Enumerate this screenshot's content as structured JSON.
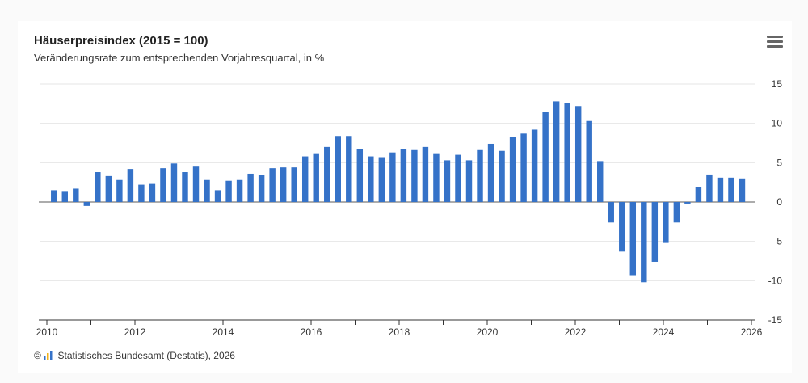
{
  "header": {
    "title": "Häuserpreisindex (2015 = 100)",
    "subtitle": "Veränderungsrate zum entsprechenden Vorjahresquartal, in %",
    "menu_icon": "hamburger-menu-icon"
  },
  "credits": {
    "prefix": "©",
    "text": "Statistisches Bundesamt (Destatis), 2026"
  },
  "colors": {
    "bar": "#3572c8",
    "grid": "#e6e6e6",
    "zero_line": "#7a7a7a",
    "axis": "#333333"
  },
  "chart_data": {
    "type": "bar",
    "title": "Häuserpreisindex (2015 = 100)",
    "subtitle": "Veränderungsrate zum entsprechenden Vorjahresquartal, in %",
    "xlabel": "",
    "ylabel": "",
    "ylim": [
      -15,
      15
    ],
    "yticks": [
      15,
      10,
      5,
      0,
      -5,
      -10,
      -15
    ],
    "xlim": [
      2010,
      2026
    ],
    "xticks": [
      "2010",
      "2012",
      "2014",
      "2016",
      "2018",
      "2020",
      "2022",
      "2024",
      "2026"
    ],
    "y_axis_side": "right",
    "grid": true,
    "legend": false,
    "categories": [
      "2010-Q1",
      "2010-Q2",
      "2010-Q3",
      "2010-Q4",
      "2011-Q1",
      "2011-Q2",
      "2011-Q3",
      "2011-Q4",
      "2012-Q1",
      "2012-Q2",
      "2012-Q3",
      "2012-Q4",
      "2013-Q1",
      "2013-Q2",
      "2013-Q3",
      "2013-Q4",
      "2014-Q1",
      "2014-Q2",
      "2014-Q3",
      "2014-Q4",
      "2015-Q1",
      "2015-Q2",
      "2015-Q3",
      "2015-Q4",
      "2016-Q1",
      "2016-Q2",
      "2016-Q3",
      "2016-Q4",
      "2017-Q1",
      "2017-Q2",
      "2017-Q3",
      "2017-Q4",
      "2018-Q1",
      "2018-Q2",
      "2018-Q3",
      "2018-Q4",
      "2019-Q1",
      "2019-Q2",
      "2019-Q3",
      "2019-Q4",
      "2020-Q1",
      "2020-Q2",
      "2020-Q3",
      "2020-Q4",
      "2021-Q1",
      "2021-Q2",
      "2021-Q3",
      "2021-Q4",
      "2022-Q1",
      "2022-Q2",
      "2022-Q3",
      "2022-Q4",
      "2023-Q1",
      "2023-Q2",
      "2023-Q3",
      "2023-Q4",
      "2024-Q1",
      "2024-Q2",
      "2024-Q3",
      "2024-Q4",
      "2025-Q1",
      "2025-Q2",
      "2025-Q3",
      "2025-Q4"
    ],
    "values": [
      1.5,
      1.4,
      1.7,
      -0.5,
      3.8,
      3.3,
      2.8,
      4.2,
      2.2,
      2.3,
      4.3,
      4.9,
      3.8,
      4.5,
      2.8,
      1.5,
      2.7,
      2.8,
      3.6,
      3.4,
      4.3,
      4.4,
      4.4,
      5.8,
      6.2,
      7.0,
      8.4,
      8.4,
      6.7,
      5.8,
      5.7,
      6.3,
      6.7,
      6.6,
      7.0,
      6.2,
      5.3,
      6.0,
      5.3,
      6.6,
      7.4,
      6.5,
      8.3,
      8.7,
      9.2,
      11.5,
      12.8,
      12.6,
      12.2,
      10.3,
      5.2,
      -2.6,
      -6.3,
      -9.3,
      -10.2,
      -7.6,
      -5.2,
      -2.6,
      -0.2,
      1.9,
      3.5,
      3.1,
      3.1,
      3.0
    ]
  }
}
